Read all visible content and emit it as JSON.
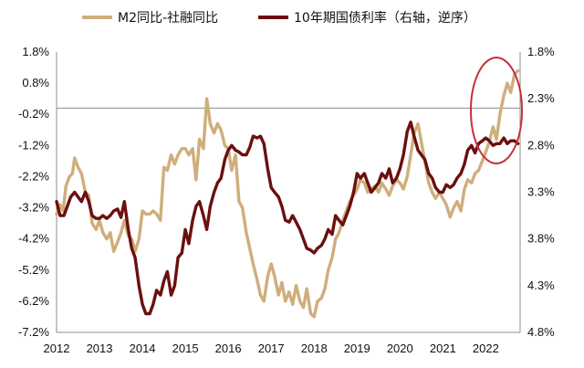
{
  "chart_data": {
    "type": "line",
    "legend": {
      "position": "top"
    },
    "dual_axis": true,
    "x_ticks": [
      "2012",
      "2013",
      "2014",
      "2015",
      "2016",
      "2017",
      "2018",
      "2019",
      "2020",
      "2021",
      "2022"
    ],
    "left_axis": {
      "ticks": [
        "1.8%",
        "0.8%",
        "-0.2%",
        "-1.2%",
        "-2.2%",
        "-3.2%",
        "-4.2%",
        "-5.2%",
        "-6.2%",
        "-7.2%"
      ],
      "range": [
        -7.2,
        1.8
      ]
    },
    "right_axis": {
      "ticks": [
        "1.8%",
        "2.3%",
        "2.8%",
        "3.3%",
        "3.8%",
        "4.3%",
        "4.8%"
      ],
      "range": [
        1.8,
        4.8
      ],
      "reversed": true
    },
    "series": [
      {
        "name": "M2同比-社融同比",
        "axis": "left",
        "color": "#cfae7c",
        "points": [
          [
            2012.0,
            -3.4
          ],
          [
            2012.08,
            -3.1
          ],
          [
            2012.15,
            -3.3
          ],
          [
            2012.22,
            -2.5
          ],
          [
            2012.3,
            -2.2
          ],
          [
            2012.37,
            -2.1
          ],
          [
            2012.42,
            -1.6
          ],
          [
            2012.5,
            -1.9
          ],
          [
            2012.58,
            -2.1
          ],
          [
            2012.67,
            -2.7
          ],
          [
            2012.75,
            -2.8
          ],
          [
            2012.83,
            -3.7
          ],
          [
            2012.92,
            -3.9
          ],
          [
            2013.0,
            -3.6
          ],
          [
            2013.08,
            -4.0
          ],
          [
            2013.17,
            -4.2
          ],
          [
            2013.25,
            -4.0
          ],
          [
            2013.33,
            -4.6
          ],
          [
            2013.42,
            -4.3
          ],
          [
            2013.5,
            -4.0
          ],
          [
            2013.58,
            -3.6
          ],
          [
            2013.67,
            -4.1
          ],
          [
            2013.75,
            -4.2
          ],
          [
            2013.83,
            -4.6
          ],
          [
            2013.92,
            -4.2
          ],
          [
            2014.0,
            -3.3
          ],
          [
            2014.08,
            -3.4
          ],
          [
            2014.17,
            -3.4
          ],
          [
            2014.25,
            -3.3
          ],
          [
            2014.33,
            -3.4
          ],
          [
            2014.42,
            -3.6
          ],
          [
            2014.5,
            -1.9
          ],
          [
            2014.58,
            -2.0
          ],
          [
            2014.67,
            -1.5
          ],
          [
            2014.75,
            -1.8
          ],
          [
            2014.83,
            -1.5
          ],
          [
            2014.92,
            -1.3
          ],
          [
            2015.0,
            -1.3
          ],
          [
            2015.08,
            -1.5
          ],
          [
            2015.17,
            -1.3
          ],
          [
            2015.25,
            -2.3
          ],
          [
            2015.33,
            -1.0
          ],
          [
            2015.42,
            -1.3
          ],
          [
            2015.5,
            0.3
          ],
          [
            2015.58,
            -0.5
          ],
          [
            2015.67,
            -0.8
          ],
          [
            2015.75,
            -0.5
          ],
          [
            2015.83,
            -0.7
          ],
          [
            2015.92,
            -1.2
          ],
          [
            2016.0,
            -1.3
          ],
          [
            2016.08,
            -2.0
          ],
          [
            2016.17,
            -1.5
          ],
          [
            2016.25,
            -3.0
          ],
          [
            2016.33,
            -3.2
          ],
          [
            2016.42,
            -4.0
          ],
          [
            2016.5,
            -4.5
          ],
          [
            2016.58,
            -5.0
          ],
          [
            2016.67,
            -5.5
          ],
          [
            2016.75,
            -6.0
          ],
          [
            2016.83,
            -6.2
          ],
          [
            2016.92,
            -5.4
          ],
          [
            2017.0,
            -5.0
          ],
          [
            2017.08,
            -5.4
          ],
          [
            2017.17,
            -6.0
          ],
          [
            2017.25,
            -5.6
          ],
          [
            2017.33,
            -6.2
          ],
          [
            2017.42,
            -5.9
          ],
          [
            2017.5,
            -6.3
          ],
          [
            2017.58,
            -5.7
          ],
          [
            2017.67,
            -6.2
          ],
          [
            2017.75,
            -6.4
          ],
          [
            2017.83,
            -5.8
          ],
          [
            2017.92,
            -6.6
          ],
          [
            2018.0,
            -6.7
          ],
          [
            2018.08,
            -6.2
          ],
          [
            2018.17,
            -6.1
          ],
          [
            2018.25,
            -5.8
          ],
          [
            2018.33,
            -5.2
          ],
          [
            2018.42,
            -4.8
          ],
          [
            2018.5,
            -4.2
          ],
          [
            2018.58,
            -4.0
          ],
          [
            2018.67,
            -3.6
          ],
          [
            2018.75,
            -3.3
          ],
          [
            2018.83,
            -3.0
          ],
          [
            2018.92,
            -2.8
          ],
          [
            2019.0,
            -2.6
          ],
          [
            2019.08,
            -2.3
          ],
          [
            2019.17,
            -2.4
          ],
          [
            2019.25,
            -2.7
          ],
          [
            2019.33,
            -2.6
          ],
          [
            2019.42,
            -2.5
          ],
          [
            2019.5,
            -2.7
          ],
          [
            2019.58,
            -2.4
          ],
          [
            2019.67,
            -2.6
          ],
          [
            2019.75,
            -2.8
          ],
          [
            2019.83,
            -2.5
          ],
          [
            2019.92,
            -2.3
          ],
          [
            2020.0,
            -2.4
          ],
          [
            2020.08,
            -2.6
          ],
          [
            2020.17,
            -2.2
          ],
          [
            2020.25,
            -1.5
          ],
          [
            2020.33,
            -0.8
          ],
          [
            2020.42,
            -0.5
          ],
          [
            2020.5,
            -1.1
          ],
          [
            2020.58,
            -1.7
          ],
          [
            2020.67,
            -2.4
          ],
          [
            2020.75,
            -2.7
          ],
          [
            2020.83,
            -2.9
          ],
          [
            2020.92,
            -2.7
          ],
          [
            2021.0,
            -2.9
          ],
          [
            2021.08,
            -3.1
          ],
          [
            2021.17,
            -3.5
          ],
          [
            2021.25,
            -3.2
          ],
          [
            2021.33,
            -3.0
          ],
          [
            2021.42,
            -3.3
          ],
          [
            2021.5,
            -2.6
          ],
          [
            2021.58,
            -2.3
          ],
          [
            2021.67,
            -2.4
          ],
          [
            2021.75,
            -2.1
          ],
          [
            2021.83,
            -2.0
          ],
          [
            2021.92,
            -1.7
          ],
          [
            2022.0,
            -1.4
          ],
          [
            2022.08,
            -1.1
          ],
          [
            2022.17,
            -0.6
          ],
          [
            2022.25,
            -1.0
          ],
          [
            2022.33,
            -0.2
          ],
          [
            2022.42,
            0.4
          ],
          [
            2022.5,
            0.8
          ],
          [
            2022.58,
            0.5
          ],
          [
            2022.67,
            1.1
          ],
          [
            2022.75,
            1.2
          ]
        ]
      },
      {
        "name": "10年期国债利率（右轴，逆序）",
        "axis": "right",
        "color": "#6b0f0f",
        "points": [
          [
            2012.0,
            3.4
          ],
          [
            2012.08,
            3.55
          ],
          [
            2012.17,
            3.55
          ],
          [
            2012.25,
            3.45
          ],
          [
            2012.33,
            3.35
          ],
          [
            2012.42,
            3.3
          ],
          [
            2012.5,
            3.35
          ],
          [
            2012.58,
            3.4
          ],
          [
            2012.67,
            3.3
          ],
          [
            2012.75,
            3.4
          ],
          [
            2012.83,
            3.55
          ],
          [
            2012.92,
            3.58
          ],
          [
            2013.0,
            3.58
          ],
          [
            2013.08,
            3.55
          ],
          [
            2013.17,
            3.58
          ],
          [
            2013.25,
            3.55
          ],
          [
            2013.33,
            3.5
          ],
          [
            2013.42,
            3.48
          ],
          [
            2013.5,
            3.57
          ],
          [
            2013.58,
            3.4
          ],
          [
            2013.67,
            3.7
          ],
          [
            2013.75,
            3.9
          ],
          [
            2013.83,
            4.0
          ],
          [
            2013.92,
            4.3
          ],
          [
            2014.0,
            4.5
          ],
          [
            2014.08,
            4.6
          ],
          [
            2014.17,
            4.6
          ],
          [
            2014.25,
            4.5
          ],
          [
            2014.33,
            4.35
          ],
          [
            2014.42,
            4.4
          ],
          [
            2014.5,
            4.25
          ],
          [
            2014.58,
            4.15
          ],
          [
            2014.67,
            4.4
          ],
          [
            2014.75,
            4.3
          ],
          [
            2014.83,
            4.0
          ],
          [
            2014.92,
            3.95
          ],
          [
            2015.0,
            3.7
          ],
          [
            2015.08,
            3.85
          ],
          [
            2015.17,
            3.6
          ],
          [
            2015.25,
            3.45
          ],
          [
            2015.33,
            3.4
          ],
          [
            2015.42,
            3.55
          ],
          [
            2015.5,
            3.7
          ],
          [
            2015.58,
            3.45
          ],
          [
            2015.67,
            3.3
          ],
          [
            2015.75,
            3.2
          ],
          [
            2015.83,
            3.15
          ],
          [
            2015.92,
            2.95
          ],
          [
            2016.0,
            2.85
          ],
          [
            2016.08,
            2.8
          ],
          [
            2016.17,
            2.85
          ],
          [
            2016.25,
            2.87
          ],
          [
            2016.33,
            2.9
          ],
          [
            2016.42,
            2.9
          ],
          [
            2016.5,
            2.82
          ],
          [
            2016.58,
            2.7
          ],
          [
            2016.67,
            2.72
          ],
          [
            2016.75,
            2.7
          ],
          [
            2016.83,
            2.78
          ],
          [
            2016.92,
            3.05
          ],
          [
            2017.0,
            3.25
          ],
          [
            2017.08,
            3.3
          ],
          [
            2017.17,
            3.35
          ],
          [
            2017.25,
            3.45
          ],
          [
            2017.33,
            3.6
          ],
          [
            2017.42,
            3.62
          ],
          [
            2017.5,
            3.55
          ],
          [
            2017.58,
            3.62
          ],
          [
            2017.67,
            3.7
          ],
          [
            2017.75,
            3.8
          ],
          [
            2017.83,
            3.9
          ],
          [
            2017.92,
            3.92
          ],
          [
            2018.0,
            3.95
          ],
          [
            2018.08,
            3.9
          ],
          [
            2018.17,
            3.87
          ],
          [
            2018.25,
            3.8
          ],
          [
            2018.33,
            3.7
          ],
          [
            2018.42,
            3.75
          ],
          [
            2018.5,
            3.55
          ],
          [
            2018.58,
            3.6
          ],
          [
            2018.67,
            3.65
          ],
          [
            2018.75,
            3.55
          ],
          [
            2018.83,
            3.45
          ],
          [
            2018.92,
            3.3
          ],
          [
            2019.0,
            3.1
          ],
          [
            2019.08,
            3.15
          ],
          [
            2019.17,
            3.1
          ],
          [
            2019.25,
            3.2
          ],
          [
            2019.33,
            3.3
          ],
          [
            2019.42,
            3.25
          ],
          [
            2019.5,
            3.2
          ],
          [
            2019.58,
            3.1
          ],
          [
            2019.67,
            3.15
          ],
          [
            2019.75,
            3.05
          ],
          [
            2019.83,
            3.2
          ],
          [
            2019.92,
            3.15
          ],
          [
            2020.0,
            3.05
          ],
          [
            2020.08,
            2.9
          ],
          [
            2020.17,
            2.65
          ],
          [
            2020.25,
            2.55
          ],
          [
            2020.33,
            2.7
          ],
          [
            2020.42,
            2.85
          ],
          [
            2020.5,
            2.9
          ],
          [
            2020.58,
            2.95
          ],
          [
            2020.67,
            3.1
          ],
          [
            2020.75,
            3.15
          ],
          [
            2020.83,
            3.25
          ],
          [
            2020.92,
            3.3
          ],
          [
            2021.0,
            3.3
          ],
          [
            2021.08,
            3.22
          ],
          [
            2021.17,
            3.25
          ],
          [
            2021.25,
            3.22
          ],
          [
            2021.33,
            3.15
          ],
          [
            2021.42,
            3.1
          ],
          [
            2021.5,
            3.0
          ],
          [
            2021.58,
            2.85
          ],
          [
            2021.67,
            2.8
          ],
          [
            2021.75,
            2.88
          ],
          [
            2021.83,
            2.78
          ],
          [
            2021.92,
            2.75
          ],
          [
            2022.0,
            2.72
          ],
          [
            2022.08,
            2.75
          ],
          [
            2022.17,
            2.8
          ],
          [
            2022.25,
            2.78
          ],
          [
            2022.33,
            2.78
          ],
          [
            2022.42,
            2.72
          ],
          [
            2022.5,
            2.78
          ],
          [
            2022.58,
            2.75
          ],
          [
            2022.67,
            2.75
          ],
          [
            2022.75,
            2.78
          ]
        ]
      }
    ],
    "annotations": [
      {
        "type": "ellipse",
        "color": "#c6303b",
        "around": "2022 endpoints of both series"
      }
    ]
  }
}
